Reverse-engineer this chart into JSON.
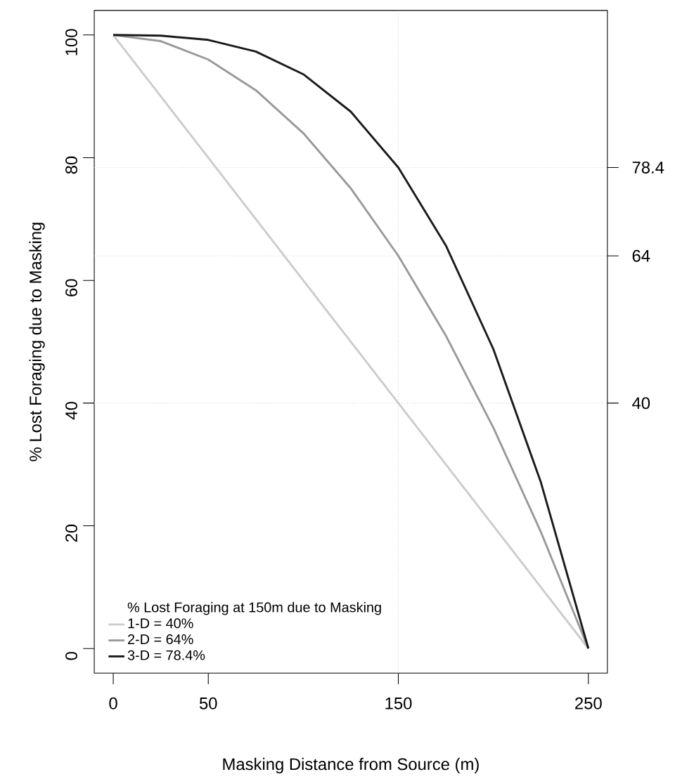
{
  "chart_data": {
    "type": "line",
    "xlabel": "Masking Distance from Source (m)",
    "ylabel": "% Lost Foraging due to Masking",
    "legend_title": "% Lost Foraging at 150m due to Masking",
    "x": [
      0,
      25,
      50,
      75,
      100,
      125,
      150,
      175,
      200,
      225,
      250
    ],
    "series": [
      {
        "name": "1-D = 40%",
        "color": "#cccccc",
        "values": [
          100,
          90,
          80,
          70,
          60,
          50,
          40,
          30,
          20,
          10,
          0
        ]
      },
      {
        "name": "2-D = 64%",
        "color": "#999999",
        "values": [
          100,
          99,
          96,
          91,
          84,
          75,
          64,
          51,
          36,
          19,
          0
        ]
      },
      {
        "name": "3-D = 78.4%",
        "color": "#1a1a1a",
        "values": [
          100,
          99.9,
          99.2,
          97.3,
          93.6,
          87.5,
          78.4,
          65.7,
          48.8,
          27.1,
          0
        ]
      }
    ],
    "xlim": [
      -10,
      260
    ],
    "xticks": [
      0,
      50,
      150,
      250
    ],
    "ylim": [
      -4,
      104
    ],
    "yticks": [
      0,
      20,
      40,
      60,
      80,
      100
    ],
    "y2lim": [
      -4,
      104
    ],
    "y2ticks": [
      40,
      64,
      78.4
    ],
    "ref_lines": [
      {
        "axis": "y2",
        "value": 40,
        "color": "#d3d3d3",
        "line_style": "dotted"
      },
      {
        "axis": "y2",
        "value": 64,
        "color": "#d3d3d3",
        "line_style": "dotted"
      },
      {
        "axis": "y2",
        "value": 78.4,
        "color": "#d3d3d3",
        "line_style": "dotted"
      },
      {
        "axis": "x",
        "value": 150,
        "color": "#d3d3d3",
        "line_style": "dotted"
      }
    ],
    "legend": "bottom left",
    "marker": "none",
    "line_style": "solid"
  }
}
